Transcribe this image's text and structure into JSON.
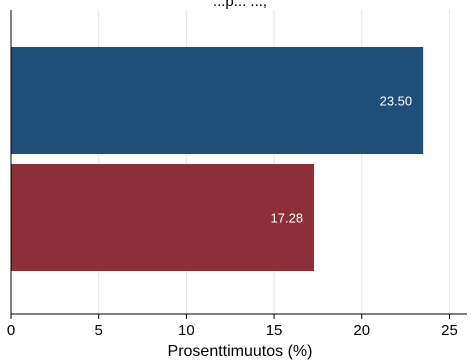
{
  "chart_data": {
    "type": "bar",
    "orientation": "horizontal",
    "title": "...p... ...,",
    "xlabel": "Prosenttimuutos (%)",
    "ylabel": "",
    "xlim": [
      0,
      26
    ],
    "xticks": [
      0,
      5,
      10,
      15,
      20,
      25
    ],
    "grid": "vertical",
    "bars": [
      {
        "value": 23.5,
        "label": "23.50",
        "color": "#1f4e79"
      },
      {
        "value": 17.28,
        "label": "17.28",
        "color": "#8c2f39"
      }
    ]
  }
}
